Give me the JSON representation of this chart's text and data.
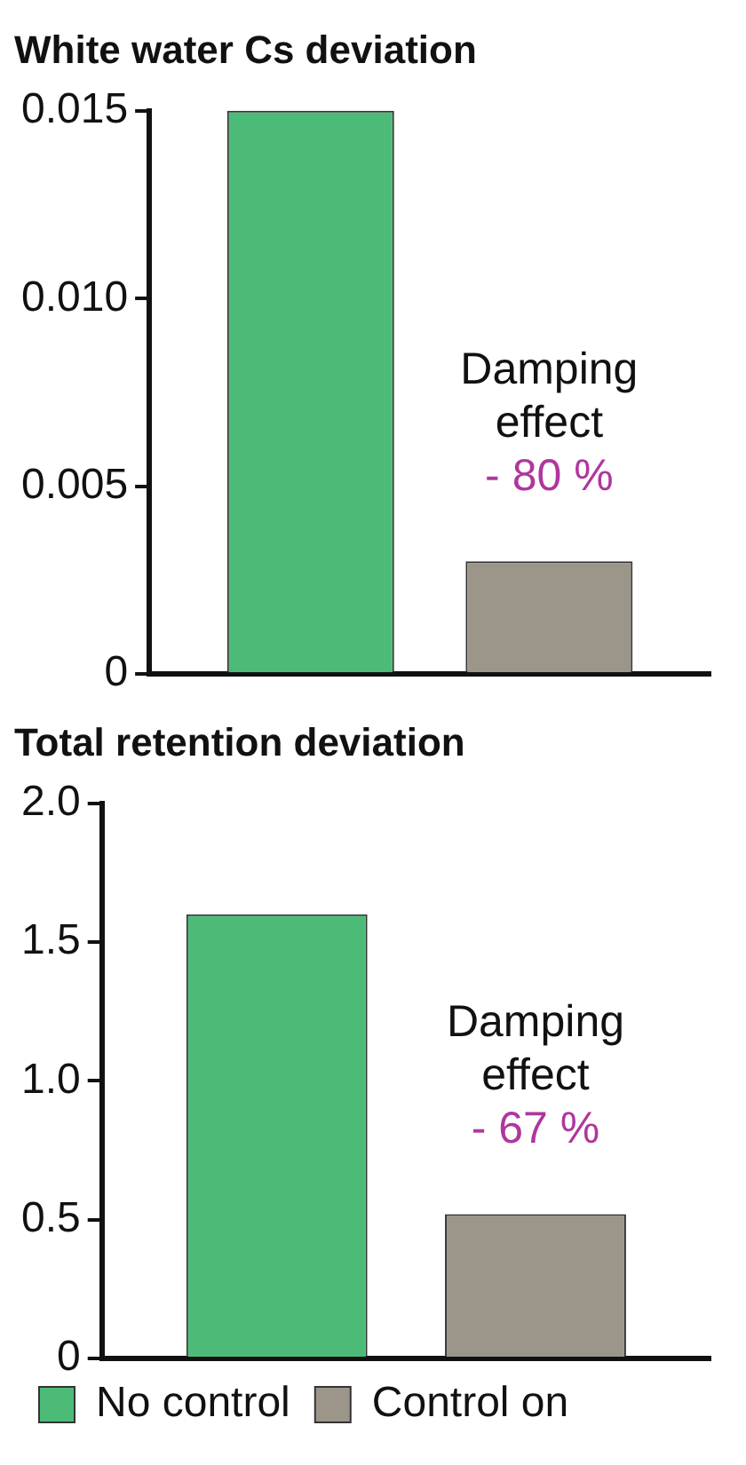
{
  "chart_data": [
    {
      "type": "bar",
      "title": "White water Cs deviation",
      "categories": [
        null
      ],
      "series": [
        {
          "color": "#4dbb78",
          "values": [
            0.015
          ]
        },
        {
          "color": "#9c968a",
          "values": [
            0.003
          ]
        }
      ],
      "ylim": [
        0,
        0.015
      ],
      "yticks": [
        0,
        {
          "value": 0.005,
          "label": "0.005"
        },
        {
          "value": 0.01,
          "label": "0.010"
        },
        {
          "value": 0.015,
          "label": "0.015"
        }
      ],
      "tick_labels": "y",
      "grid": false,
      "legend": false,
      "annotations": [
        "Damping effect",
        "- 80 %"
      ]
    },
    {
      "type": "bar",
      "title": "Total retention deviation",
      "categories": [
        null
      ],
      "series": [
        {
          "name": "No control",
          "color": "#4dbb78",
          "values": [
            1.6
          ]
        },
        {
          "name": "Control on",
          "color": "#9c968a",
          "values": [
            0.52
          ]
        }
      ],
      "ylim": [
        0,
        2.0
      ],
      "yticks": [
        0,
        0.5,
        {
          "value": 1,
          "label": "1.0"
        },
        1.5,
        {
          "value": 2,
          "label": "2.0"
        }
      ],
      "tick_labels": "y",
      "grid": false,
      "legend": "bottom",
      "annotations": [
        "Damping effect",
        "- 67 %"
      ]
    }
  ]
}
